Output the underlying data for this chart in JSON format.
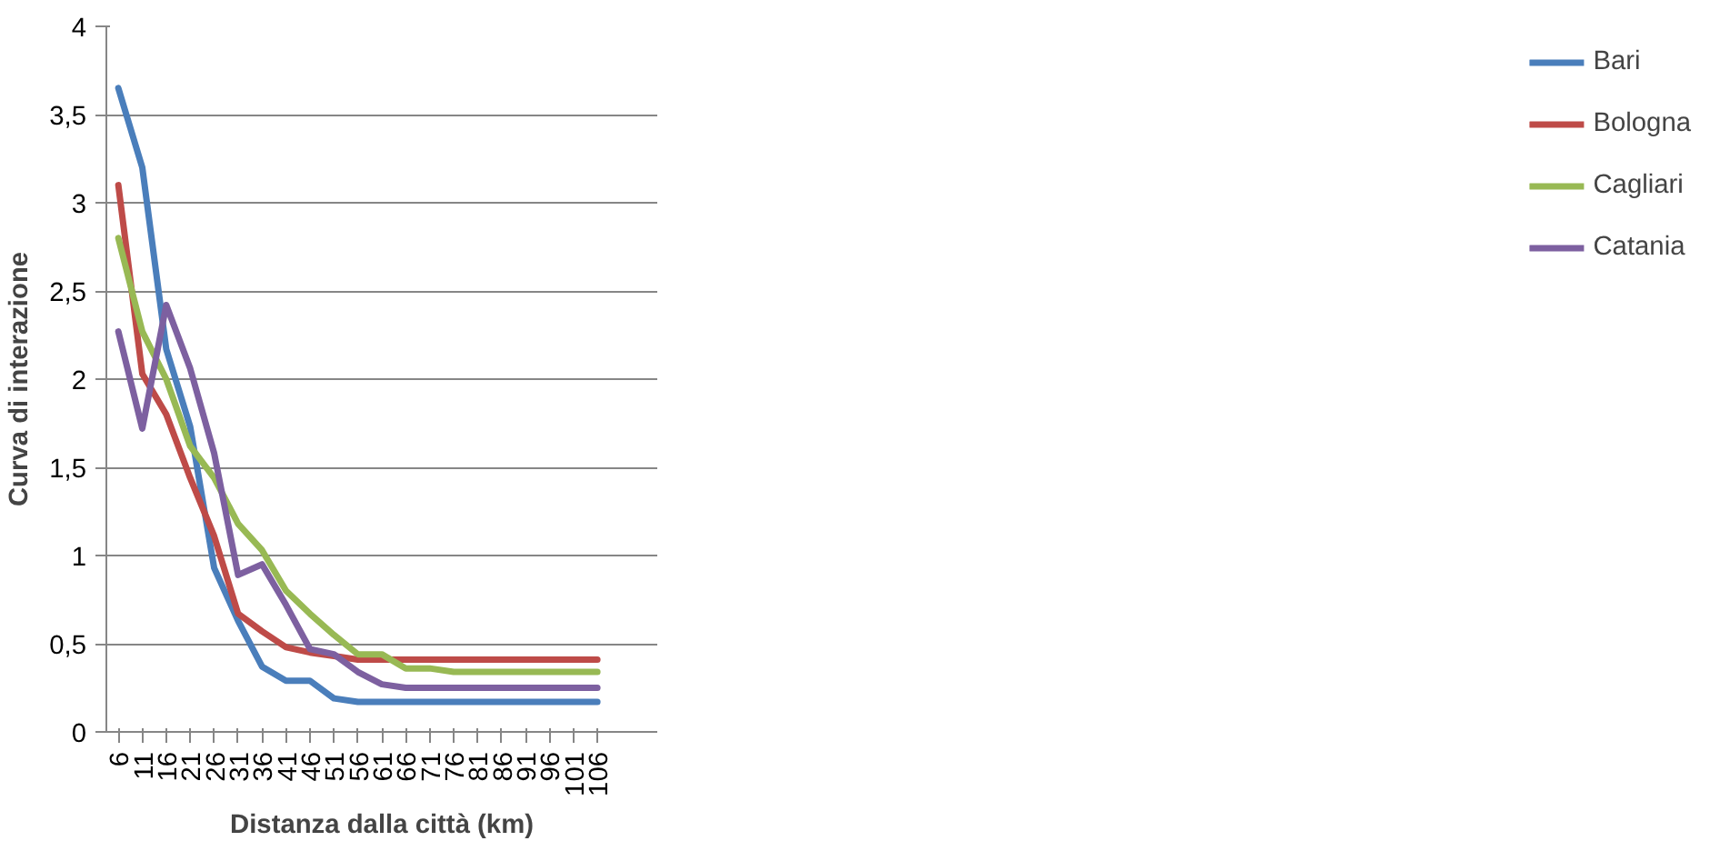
{
  "chart_data": {
    "type": "line",
    "xlabel": "Distanza dalla città (km)",
    "ylabel": "Curva di interazione",
    "x": [
      6,
      11,
      16,
      21,
      26,
      31,
      36,
      41,
      46,
      51,
      56,
      61,
      66,
      71,
      76,
      81,
      86,
      91,
      96,
      101,
      106
    ],
    "xlim": [
      3.5,
      118.5
    ],
    "xticks": [
      6,
      11,
      16,
      21,
      26,
      31,
      36,
      41,
      46,
      51,
      56,
      61,
      66,
      71,
      76,
      81,
      86,
      91,
      96,
      101,
      106
    ],
    "ylim": [
      0,
      4
    ],
    "yticks": [
      0,
      {
        "value": 0.5,
        "label": "0,5"
      },
      1,
      {
        "value": 1.5,
        "label": "1,5"
      },
      2,
      {
        "value": 2.5,
        "label": "2,5"
      },
      3,
      {
        "value": 3.5,
        "label": "3,5"
      },
      4
    ],
    "grid": "y",
    "legend": "right",
    "marker": "none",
    "line_style": "solid",
    "series": [
      {
        "name": "Bari",
        "color": "#4a7ebb",
        "values": [
          3.65,
          3.2,
          2.17,
          1.73,
          0.93,
          0.63,
          0.37,
          0.29,
          0.29,
          0.19,
          0.17,
          0.17,
          0.17,
          0.17,
          0.17,
          0.17,
          0.17,
          0.17,
          0.17,
          0.17,
          0.17
        ]
      },
      {
        "name": "Bologna",
        "color": "#be4b48",
        "values": [
          3.1,
          2.03,
          1.8,
          1.44,
          1.11,
          0.67,
          0.57,
          0.48,
          0.45,
          0.43,
          0.41,
          0.41,
          0.41,
          0.41,
          0.41,
          0.41,
          0.41,
          0.41,
          0.41,
          0.41,
          0.41
        ]
      },
      {
        "name": "Cagliari",
        "color": "#98b954",
        "values": [
          2.8,
          2.27,
          2.0,
          1.62,
          1.44,
          1.18,
          1.03,
          0.8,
          0.67,
          0.55,
          0.44,
          0.44,
          0.36,
          0.36,
          0.34,
          0.34,
          0.34,
          0.34,
          0.34,
          0.34,
          0.34
        ]
      },
      {
        "name": "Catania",
        "color": "#7d60a0",
        "values": [
          2.27,
          1.72,
          2.42,
          2.06,
          1.58,
          0.89,
          0.95,
          0.72,
          0.47,
          0.44,
          0.34,
          0.27,
          0.25,
          0.25,
          0.25,
          0.25,
          0.25,
          0.25,
          0.25,
          0.25,
          0.25
        ]
      }
    ]
  }
}
